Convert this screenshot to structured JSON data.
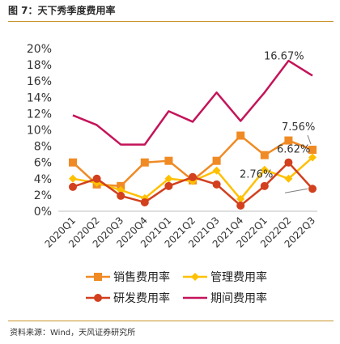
{
  "figure": {
    "title": "图 7：天下秀季度费用率",
    "source": "资料来源：Wind，天风证券研究所"
  },
  "chart_data": {
    "type": "line",
    "title": "",
    "xlabel": "",
    "ylabel": "",
    "categories": [
      "2020Q1",
      "2020Q2",
      "2020Q3",
      "2020Q4",
      "2021Q1",
      "2021Q2",
      "2021Q3",
      "2021Q4",
      "2022Q1",
      "2022Q2",
      "2022Q3"
    ],
    "ylim": [
      0,
      20
    ],
    "y_ticks": [
      "0%",
      "2%",
      "4%",
      "6%",
      "8%",
      "10%",
      "12%",
      "14%",
      "16%",
      "18%",
      "20%"
    ],
    "grid": false,
    "legend_position": "bottom",
    "series": [
      {
        "name": "销售费用率",
        "color": "#f08a24",
        "marker": "square",
        "values": [
          6.0,
          3.3,
          3.1,
          6.0,
          6.2,
          3.8,
          6.2,
          9.3,
          6.9,
          8.7,
          7.56
        ]
      },
      {
        "name": "管理费用率",
        "color": "#ffc000",
        "marker": "diamond",
        "values": [
          4.0,
          3.5,
          2.6,
          1.6,
          4.0,
          3.7,
          5.0,
          1.5,
          5.1,
          4.0,
          6.62
        ]
      },
      {
        "name": "研发费用率",
        "color": "#d2401e",
        "marker": "circle",
        "values": [
          3.0,
          4.0,
          1.9,
          1.1,
          3.1,
          4.2,
          3.3,
          0.7,
          3.1,
          6.0,
          2.76
        ]
      },
      {
        "name": "期间费用率",
        "color": "#c4145a",
        "marker": "none",
        "values": [
          11.8,
          10.6,
          8.2,
          8.2,
          12.3,
          11.0,
          14.6,
          11.1,
          14.6,
          18.5,
          16.67
        ]
      }
    ],
    "annotations": [
      {
        "series": 3,
        "point": 10,
        "text": "16.67%"
      },
      {
        "series": 0,
        "point": 10,
        "text": "7.56%"
      },
      {
        "series": 1,
        "point": 10,
        "text": "6.62%"
      },
      {
        "series": 2,
        "point": 10,
        "text": "2.76%"
      }
    ]
  }
}
